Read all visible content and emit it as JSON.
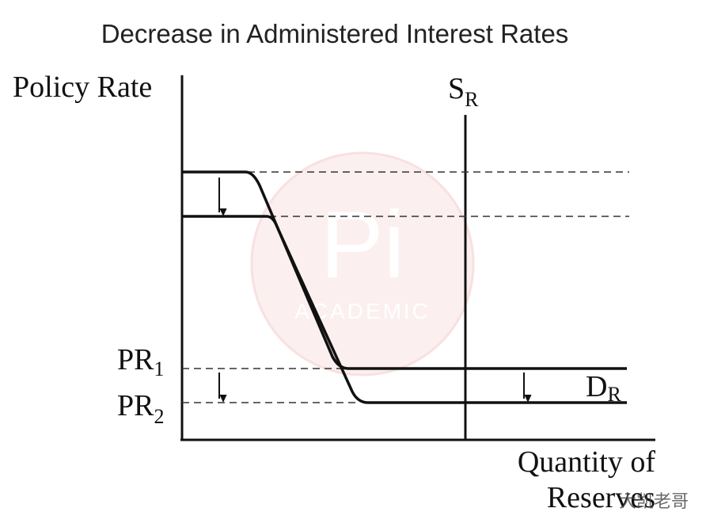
{
  "title": "Decrease in Administered Interest Rates",
  "axes": {
    "y_label": "Policy Rate",
    "x_label": {
      "line1": "Quantity of",
      "line2": "Reserves"
    }
  },
  "labels": {
    "supply": {
      "main": "S",
      "sub": "R"
    },
    "demand": {
      "main": "D",
      "sub": "R"
    },
    "pr1": {
      "main": "PR",
      "sub": "1"
    },
    "pr2": {
      "main": "PR",
      "sub": "2"
    }
  },
  "watermark": {
    "logo": "Pi",
    "brand": "ACADEMIC",
    "credit": "大凯老哥"
  }
}
